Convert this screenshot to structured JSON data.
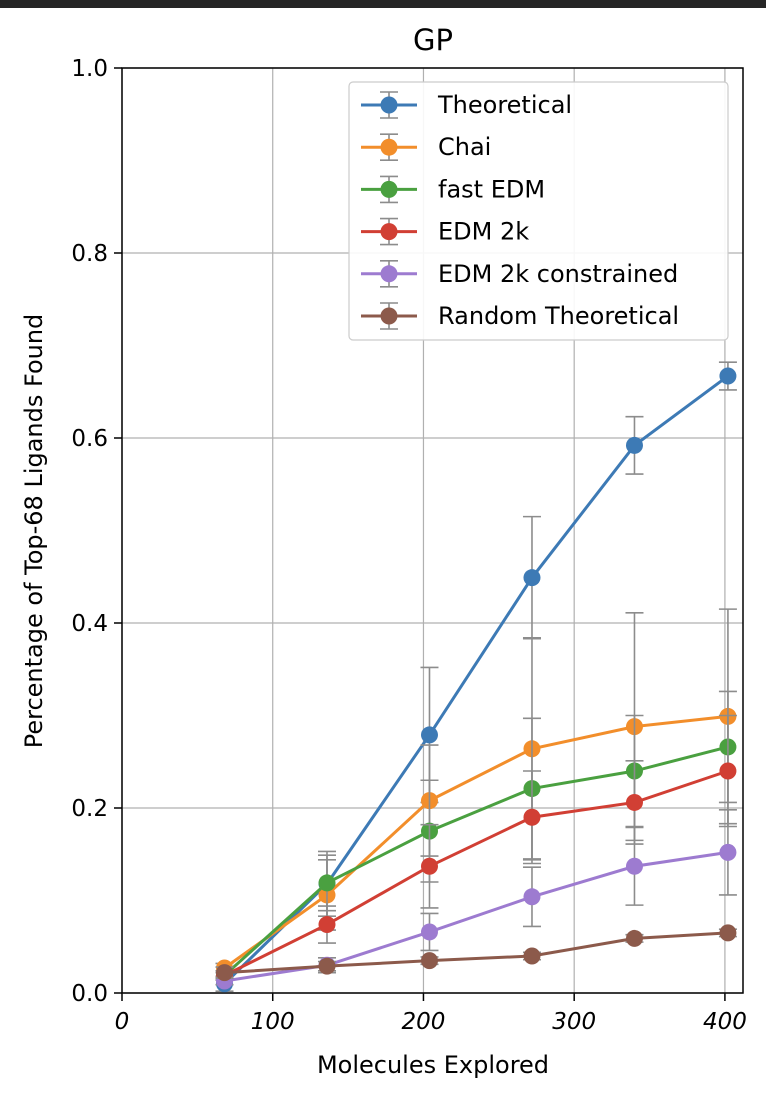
{
  "chart_data": {
    "type": "line",
    "title": "GP",
    "xlabel": "Molecules Explored",
    "ylabel": "Percentage of Top-68 Ligands Found",
    "xlim": [
      0,
      412
    ],
    "ylim": [
      0.0,
      1.0
    ],
    "x_ticks": [
      "0",
      "100",
      "200",
      "300",
      "400"
    ],
    "y_ticks": [
      "0.0",
      "0.2",
      "0.4",
      "0.6",
      "0.8",
      "1.0"
    ],
    "grid": true,
    "legend_position": "top-right",
    "error_bar_color": "#8c8c8c",
    "series": [
      {
        "name": "Theoretical",
        "color": "#3d7ab5",
        "x": [
          68,
          136,
          204,
          272,
          340,
          402
        ],
        "y": [
          0.01,
          0.118,
          0.279,
          0.449,
          0.592,
          0.667
        ],
        "err": [
          0.008,
          0.035,
          0.073,
          0.066,
          0.031,
          0.015
        ]
      },
      {
        "name": "Chai",
        "color": "#f28e2b",
        "x": [
          68,
          136,
          204,
          272,
          340,
          402
        ],
        "y": [
          0.027,
          0.106,
          0.208,
          0.264,
          0.288,
          0.299
        ],
        "err": [
          0.005,
          0.038,
          0.06,
          0.12,
          0.123,
          0.116
        ]
      },
      {
        "name": "fast EDM",
        "color": "#4aa040",
        "x": [
          68,
          136,
          204,
          272,
          340,
          402
        ],
        "y": [
          0.019,
          0.119,
          0.175,
          0.221,
          0.24,
          0.266
        ],
        "err": [
          0.005,
          0.03,
          0.055,
          0.076,
          0.06,
          0.06
        ]
      },
      {
        "name": "EDM 2k",
        "color": "#d13f34",
        "x": [
          68,
          136,
          204,
          272,
          340,
          402
        ],
        "y": [
          0.019,
          0.074,
          0.137,
          0.19,
          0.206,
          0.24
        ],
        "err": [
          0.005,
          0.02,
          0.045,
          0.05,
          0.045,
          0.06
        ]
      },
      {
        "name": "EDM 2k constrained",
        "color": "#9d7bd0",
        "x": [
          68,
          136,
          204,
          272,
          340,
          402
        ],
        "y": [
          0.013,
          0.03,
          0.066,
          0.104,
          0.137,
          0.152
        ],
        "err": [
          0.004,
          0.008,
          0.02,
          0.032,
          0.042,
          0.046
        ]
      },
      {
        "name": "Random Theoretical",
        "color": "#8c5a4b",
        "x": [
          68,
          136,
          204,
          272,
          340,
          402
        ],
        "y": [
          0.022,
          0.029,
          0.035,
          0.04,
          0.059,
          0.065
        ],
        "err": [
          0.006,
          0.005,
          0.004,
          0.004,
          0.004,
          0.004
        ]
      }
    ]
  }
}
